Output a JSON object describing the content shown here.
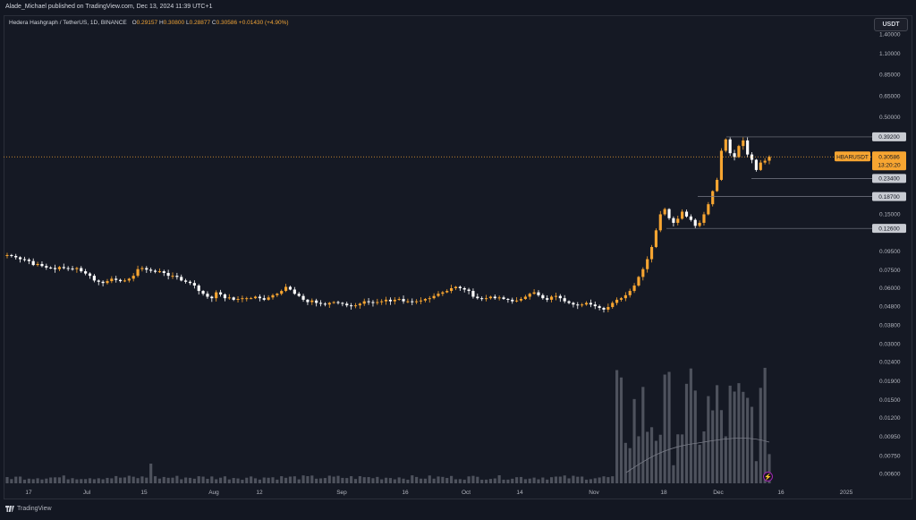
{
  "header": {
    "published": "Alade_Michael published on TradingView.com, Dec 13, 2024 11:39 UTC+1"
  },
  "legend": {
    "symbol": "Hedera Hashgraph / TetherUS, 1D, BINANCE",
    "open_label": "O",
    "open": "0.29157",
    "high_label": "H",
    "high": "0.30800",
    "low_label": "L",
    "low": "0.28877",
    "close_label": "C",
    "close": "0.30586",
    "change": "+0.01430 (+4.90%)"
  },
  "currency_button": "USDT",
  "footer": {
    "brand": "TradingView"
  },
  "icons": {
    "flash": "lightning-icon",
    "logo": "tradingview-logo-icon"
  },
  "colors": {
    "up": "#f7a531",
    "down": "#ffffff",
    "background": "#131722",
    "price_line": "#f7a531"
  },
  "chart_data": {
    "type": "candlestick",
    "symbol": "HBARUSDT",
    "interval": "1D",
    "y_scale": "log",
    "y_ticks": [
      "1.40000",
      "1.10000",
      "0.85000",
      "0.65000",
      "0.50000",
      "0.15000",
      "0.09500",
      "0.07500",
      "0.06000",
      "0.04800",
      "0.03800",
      "0.03000",
      "0.02400",
      "0.01900",
      "0.01500",
      "0.01200",
      "0.00950",
      "0.00750",
      "0.00600"
    ],
    "x_ticks": [
      "17",
      "Jul",
      "15",
      "Aug",
      "12",
      "Sep",
      "16",
      "Oct",
      "14",
      "Nov",
      "18",
      "Dec",
      "16",
      "2025"
    ],
    "price_levels": [
      "0.39200",
      "0.23400",
      "0.18700",
      "0.12600"
    ],
    "last_price": {
      "symbol": "HBARUSDT",
      "value": "0.30586",
      "countdown": "13:20:20"
    },
    "closes": [
      0.0905,
      0.0895,
      0.088,
      0.086,
      0.0855,
      0.084,
      0.08,
      0.081,
      0.079,
      0.0775,
      0.077,
      0.076,
      0.078,
      0.077,
      0.0765,
      0.076,
      0.077,
      0.074,
      0.072,
      0.07,
      0.066,
      0.065,
      0.064,
      0.0655,
      0.0675,
      0.0665,
      0.0655,
      0.066,
      0.0675,
      0.07,
      0.076,
      0.077,
      0.0755,
      0.0745,
      0.0735,
      0.074,
      0.0725,
      0.07,
      0.07,
      0.069,
      0.066,
      0.065,
      0.064,
      0.062,
      0.058,
      0.056,
      0.054,
      0.053,
      0.057,
      0.0555,
      0.053,
      0.0535,
      0.052,
      0.0525,
      0.053,
      0.053,
      0.053,
      0.054,
      0.053,
      0.052,
      0.0535,
      0.055,
      0.056,
      0.058,
      0.061,
      0.059,
      0.056,
      0.0545,
      0.052,
      0.0505,
      0.0515,
      0.05,
      0.0495,
      0.049,
      0.05,
      0.0505,
      0.05,
      0.0495,
      0.0485,
      0.048,
      0.0485,
      0.0495,
      0.051,
      0.0505,
      0.05,
      0.0505,
      0.051,
      0.052,
      0.051,
      0.052,
      0.0525,
      0.051,
      0.051,
      0.0505,
      0.051,
      0.0515,
      0.0525,
      0.053,
      0.0545,
      0.056,
      0.057,
      0.058,
      0.06,
      0.061,
      0.06,
      0.059,
      0.058,
      0.054,
      0.053,
      0.0525,
      0.053,
      0.054,
      0.053,
      0.0535,
      0.0525,
      0.052,
      0.051,
      0.0515,
      0.0525,
      0.054,
      0.056,
      0.057,
      0.055,
      0.053,
      0.052,
      0.054,
      0.0545,
      0.053,
      0.051,
      0.05,
      0.049,
      0.0485,
      0.049,
      0.05,
      0.049,
      0.048,
      0.047,
      0.046,
      0.0475,
      0.05,
      0.052,
      0.053,
      0.055,
      0.058,
      0.062,
      0.069,
      0.076,
      0.086,
      0.1,
      0.123,
      0.15,
      0.16,
      0.143,
      0.135,
      0.142,
      0.155,
      0.146,
      0.14,
      0.13,
      0.135,
      0.15,
      0.17,
      0.2,
      0.23,
      0.33,
      0.38,
      0.32,
      0.305,
      0.35,
      0.375,
      0.315,
      0.295,
      0.26,
      0.285,
      0.2917,
      0.3059
    ]
  }
}
